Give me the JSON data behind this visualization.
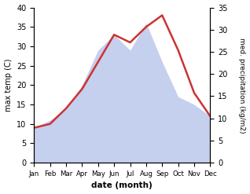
{
  "months": [
    "Jan",
    "Feb",
    "Mar",
    "Apr",
    "May",
    "Jun",
    "Jul",
    "Aug",
    "Sep",
    "Oct",
    "Nov",
    "Dec"
  ],
  "temperature": [
    9,
    10,
    14,
    19,
    26,
    33,
    31,
    35,
    38,
    29,
    18,
    12
  ],
  "precipitation": [
    9,
    11,
    14,
    20,
    29,
    33,
    29,
    36,
    26,
    17,
    15,
    12
  ],
  "temp_color": "#cc3333",
  "precip_fill_color": "#c5cfee",
  "bg_color": "#ffffff",
  "ylim_temp": [
    0,
    40
  ],
  "ylim_precip": [
    0,
    35
  ],
  "xlabel": "date (month)",
  "ylabel_left": "max temp (C)",
  "ylabel_right": "med. precipitation (kg/m2)"
}
